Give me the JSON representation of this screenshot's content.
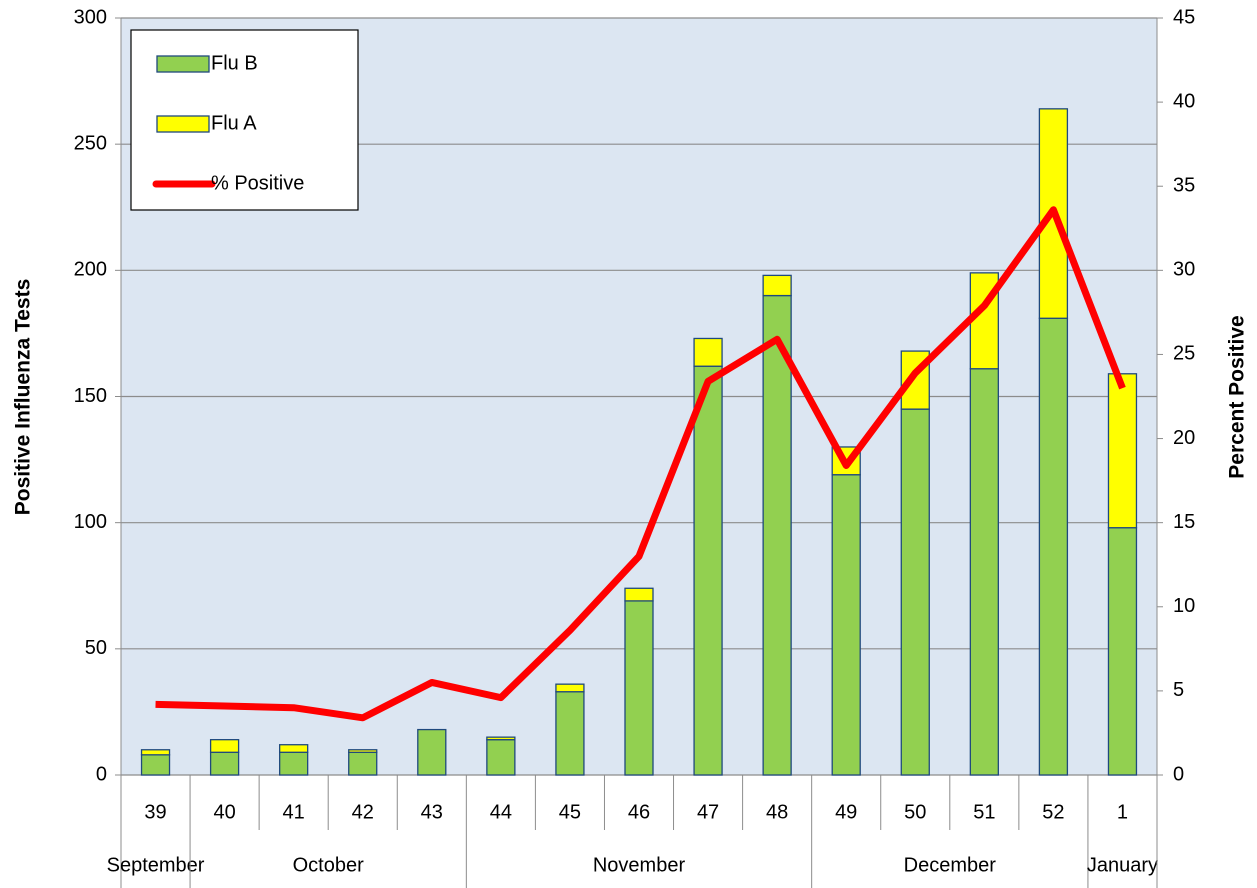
{
  "chart_data": {
    "type": "bar",
    "stacked": true,
    "y_label": "Positive Influenza Tests",
    "y2_label": "Percent Positive",
    "categories": [
      "39",
      "40",
      "41",
      "42",
      "43",
      "44",
      "45",
      "46",
      "47",
      "48",
      "49",
      "50",
      "51",
      "52",
      "1"
    ],
    "months": [
      "September",
      "October",
      "November",
      "December",
      "January"
    ],
    "series": [
      {
        "name": "Flu B",
        "color": "#92D050",
        "values": [
          8,
          9,
          9,
          9,
          18,
          14,
          33,
          69,
          162,
          190,
          119,
          145,
          161,
          181,
          98
        ]
      },
      {
        "name": "Flu A",
        "color": "#FFFF00",
        "values": [
          2,
          5,
          3,
          1,
          0,
          1,
          3,
          5,
          11,
          8,
          11,
          23,
          38,
          83,
          61
        ]
      },
      {
        "name": "% Positive",
        "color": "#FF0000",
        "type": "line",
        "axis": "y2",
        "values": [
          4.2,
          4.1,
          4.0,
          3.4,
          5.5,
          4.6,
          8.6,
          13.0,
          23.4,
          25.9,
          18.4,
          23.9,
          27.9,
          33.6,
          23.0
        ]
      }
    ],
    "ylim": [
      0,
      300
    ],
    "yticks": [
      0,
      50,
      100,
      150,
      200,
      250,
      300
    ],
    "y2lim": [
      0,
      45
    ],
    "y2ticks": [
      0,
      5,
      10,
      15,
      20,
      25,
      30,
      35,
      40,
      45
    ],
    "grid": true,
    "legend": "top-left"
  }
}
